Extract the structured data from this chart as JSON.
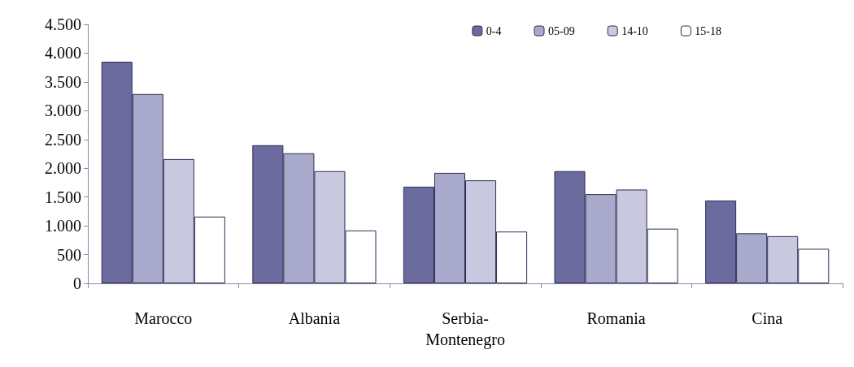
{
  "chart_data": {
    "type": "bar",
    "categories": [
      "Marocco",
      "Albania",
      "Serbia-Montenegro",
      "Romania",
      "Cina"
    ],
    "series": [
      {
        "name": "0-4",
        "color": "#6b6b9f",
        "values": [
          3850,
          2400,
          1680,
          1950,
          1440
        ]
      },
      {
        "name": "05-09",
        "color": "#a9a9cb",
        "values": [
          3290,
          2260,
          1920,
          1550,
          870
        ]
      },
      {
        "name": "14-10",
        "color": "#c8c8de",
        "values": [
          2160,
          1950,
          1790,
          1630,
          820
        ]
      },
      {
        "name": "15-18",
        "color": "#ffffff",
        "values": [
          1160,
          920,
          900,
          950,
          600
        ]
      }
    ],
    "ylim": [
      0,
      4500
    ],
    "yticks": [
      0,
      500,
      {
        "value": 1000,
        "label": "1.000"
      },
      {
        "value": 1500,
        "label": "1.500"
      },
      {
        "value": 2000,
        "label": "2.000"
      },
      {
        "value": 2500,
        "label": "2.500"
      },
      {
        "value": 3000,
        "label": "3.000"
      },
      {
        "value": 3500,
        "label": "3.500"
      },
      {
        "value": 4000,
        "label": "4.000"
      },
      {
        "value": 4500,
        "label": "4.500"
      }
    ],
    "grid": false,
    "legend": "top right"
  }
}
